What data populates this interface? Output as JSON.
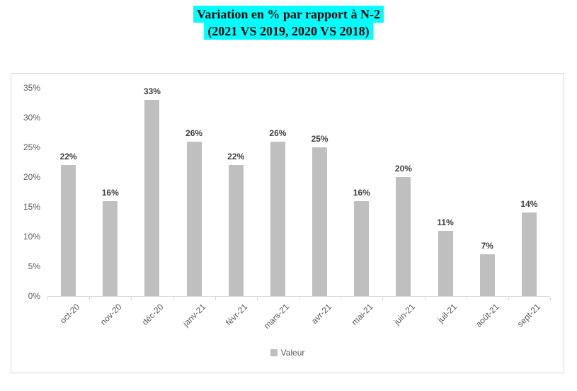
{
  "header": {
    "line1": "Variation en % par rapport à N-2",
    "line2": "(2021 VS 2019, 2020 VS 2018)",
    "highlight_color": "#00ffff",
    "text_color": "#000000"
  },
  "chart_data": {
    "type": "bar",
    "title": "Variation en % par rapport à N-2 (2021 VS 2019, 2020 VS 2018)",
    "categories": [
      "oct-20",
      "nov-20",
      "déc-20",
      "janv-21",
      "févr-21",
      "mars-21",
      "avr-21",
      "mai-21",
      "juin-21",
      "juil-21",
      "août-21",
      "sept-21"
    ],
    "series": [
      {
        "name": "Valeur",
        "values": [
          22,
          16,
          33,
          26,
          22,
          26,
          25,
          16,
          20,
          11,
          7,
          14
        ]
      }
    ],
    "data_labels": [
      "22%",
      "16%",
      "33%",
      "26%",
      "22%",
      "26%",
      "25%",
      "16%",
      "20%",
      "11%",
      "7%",
      "14%"
    ],
    "xlabel": "",
    "ylabel": "",
    "ylim": [
      0,
      35
    ],
    "ytick_step": 5,
    "yticks": [
      "0%",
      "5%",
      "10%",
      "15%",
      "20%",
      "25%",
      "30%",
      "35%"
    ],
    "grid": false,
    "legend": [
      "Valeur"
    ],
    "legend_position": "bottom",
    "colors": {
      "bar": "#bfbfbf",
      "axis_text": "#595959",
      "data_label": "#404040",
      "axis_line": "#d9d9d9",
      "chart_border": "#d9d9d9",
      "background": "#ffffff"
    }
  }
}
